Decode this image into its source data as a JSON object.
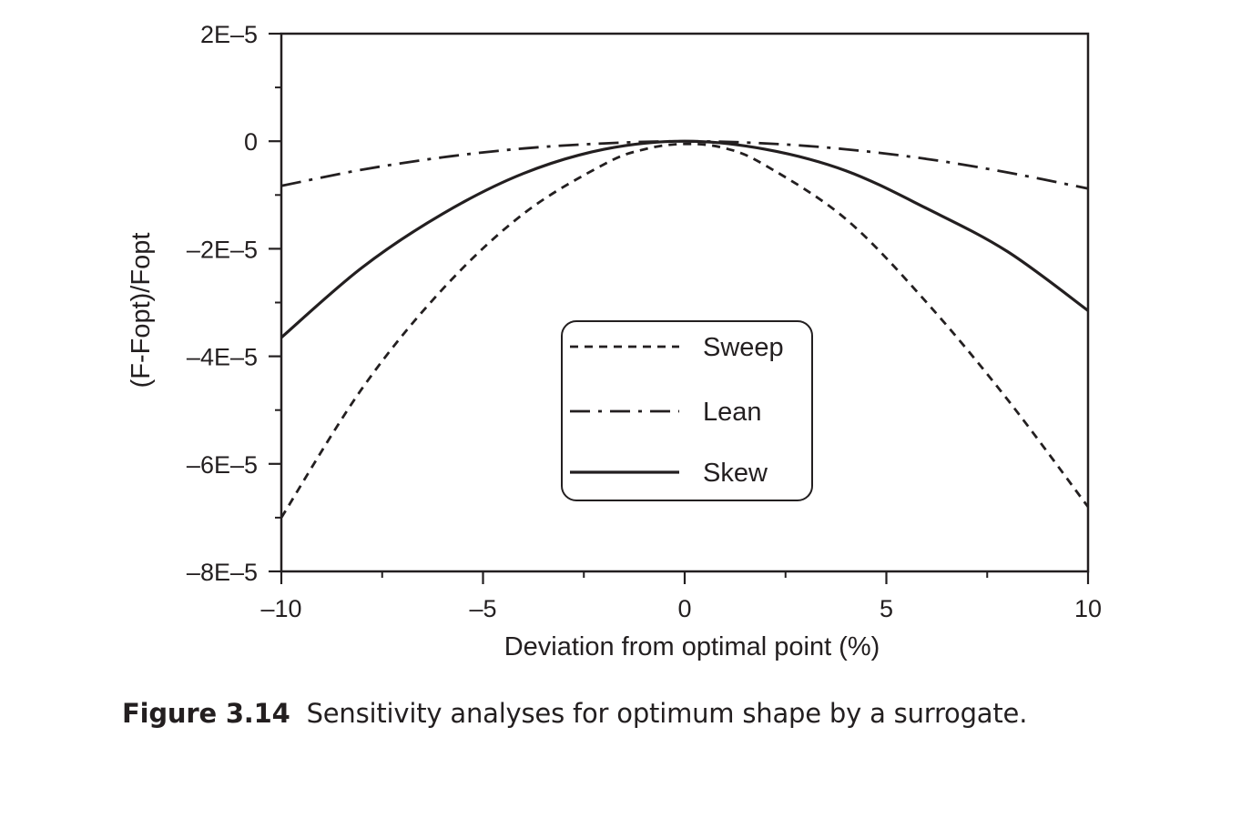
{
  "chart_data": {
    "type": "line",
    "xlabel": "Deviation from optimal point (%)",
    "ylabel": "(F-Fopt)/Fopt",
    "xlim": [
      -10,
      10
    ],
    "ylim": [
      -8e-05,
      2e-05
    ],
    "x_ticks": [
      -10,
      -5,
      0,
      5,
      10
    ],
    "x_tick_labels": [
      "–10",
      "–5",
      "0",
      "5",
      "10"
    ],
    "y_ticks": [
      2e-05,
      0,
      -2e-05,
      -4e-05,
      -6e-05,
      -8e-05
    ],
    "y_tick_labels": [
      "2E–5",
      "0",
      "–2E–5",
      "–4E–5",
      "–6E–5",
      "–8E–5"
    ],
    "grid": false,
    "legend_position": "center",
    "series": [
      {
        "name": "Sweep",
        "style": "dashed",
        "x": [
          -10,
          -8,
          -6,
          -4,
          -2,
          -1,
          0,
          1,
          2,
          4,
          6,
          8,
          10
        ],
        "y": [
          -7e-05,
          -4.6e-05,
          -2.75e-05,
          -1.35e-05,
          -4.3e-06,
          -1.5e-06,
          -5e-07,
          -1.3e-06,
          -4.5e-06,
          -1.45e-05,
          -3e-05,
          -4.8e-05,
          -6.8e-05
        ]
      },
      {
        "name": "Lean",
        "style": "dash-dot",
        "x": [
          -10,
          -8,
          -6,
          -4,
          -2,
          0,
          2,
          4,
          6,
          8,
          10
        ],
        "y": [
          -8.3e-06,
          -5.3e-06,
          -3e-06,
          -1.35e-06,
          -4e-07,
          0,
          -4e-07,
          -1.5e-06,
          -3.3e-06,
          -5.8e-06,
          -8.8e-06
        ]
      },
      {
        "name": "Skew",
        "style": "solid",
        "x": [
          -10,
          -8,
          -6,
          -4,
          -2,
          0,
          2,
          4,
          6,
          8,
          10
        ],
        "y": [
          -3.65e-05,
          -2.35e-05,
          -1.35e-05,
          -6e-06,
          -1.5e-06,
          0,
          -1.5e-06,
          -5.5e-06,
          -1.25e-05,
          -2.05e-05,
          -3.15e-05
        ]
      }
    ]
  },
  "caption": {
    "number": "Figure 3.14",
    "text": "Sensitivity analyses for optimum shape by a surrogate."
  }
}
